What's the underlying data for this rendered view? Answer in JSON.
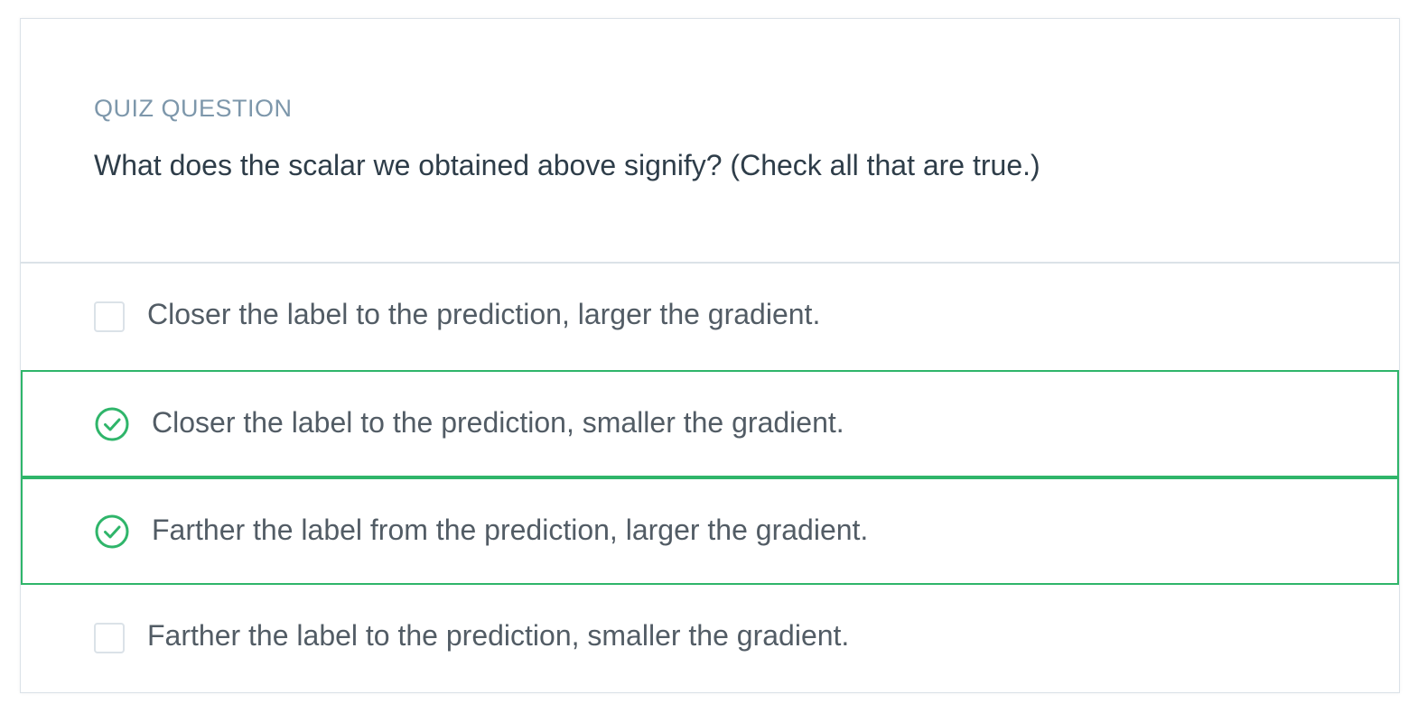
{
  "quiz": {
    "kicker": "QUIZ QUESTION",
    "question": "What does the scalar we obtained above signify? (Check all that are true.)",
    "options": [
      {
        "label": "Closer the label to the prediction, larger the gradient.",
        "state": "unchecked"
      },
      {
        "label": "Closer the label to the prediction, smaller the gradient.",
        "state": "correct"
      },
      {
        "label": "Farther the label from the prediction, larger the gradient.",
        "state": "correct"
      },
      {
        "label": "Farther the label to the prediction, smaller the gradient.",
        "state": "unchecked"
      }
    ]
  },
  "colors": {
    "correct": "#2fb56a",
    "kicker": "#7d97ab",
    "question_text": "#2e3d49",
    "option_text": "#525c65",
    "border": "#dbe2e8"
  },
  "icons": {
    "correct": "check-circle-icon",
    "unchecked": "checkbox-icon"
  }
}
